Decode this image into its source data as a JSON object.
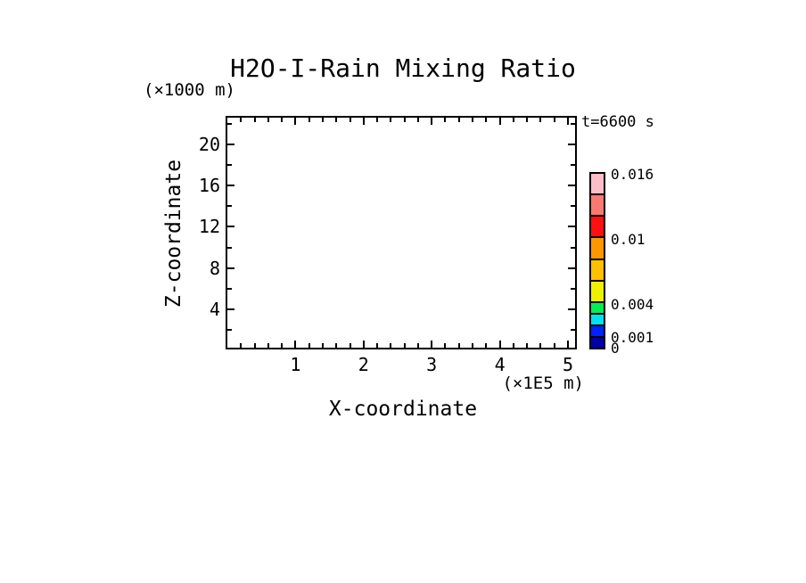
{
  "chart_data": {
    "type": "heatmap",
    "title": "H2O-I-Rain Mixing Ratio",
    "annotation": "t=6600 s",
    "xlabel": "X-coordinate",
    "x_unit": "(×1E5 m)",
    "xlim": [
      0,
      5.1
    ],
    "x_ticks": [
      1,
      2,
      3,
      4,
      5
    ],
    "x_minor_step": 0.2,
    "ylabel": "Z-coordinate",
    "y_unit": "(×1000 m)",
    "ylim": [
      0,
      22.4
    ],
    "y_ticks": [
      4,
      8,
      12,
      16,
      20
    ],
    "y_minor_step": 2,
    "grid": false,
    "legend_position": "right",
    "values": [],
    "colorbar": {
      "levels": [
        0,
        0.001,
        0.002,
        0.003,
        0.004,
        0.006,
        0.008,
        0.01,
        0.012,
        0.014,
        0.016
      ],
      "colors_bottom_to_top": [
        "#0000A8",
        "#0022FF",
        "#00E0F0",
        "#00EE55",
        "#EEF000",
        "#FFC000",
        "#FF9800",
        "#FF1010",
        "#FA7A72",
        "#FFBEC8"
      ],
      "tick_labels": [
        "0.016",
        "0.01",
        "0.004",
        "0.001",
        "0"
      ],
      "tick_values": [
        0.016,
        0.01,
        0.004,
        0.001,
        0
      ]
    }
  }
}
